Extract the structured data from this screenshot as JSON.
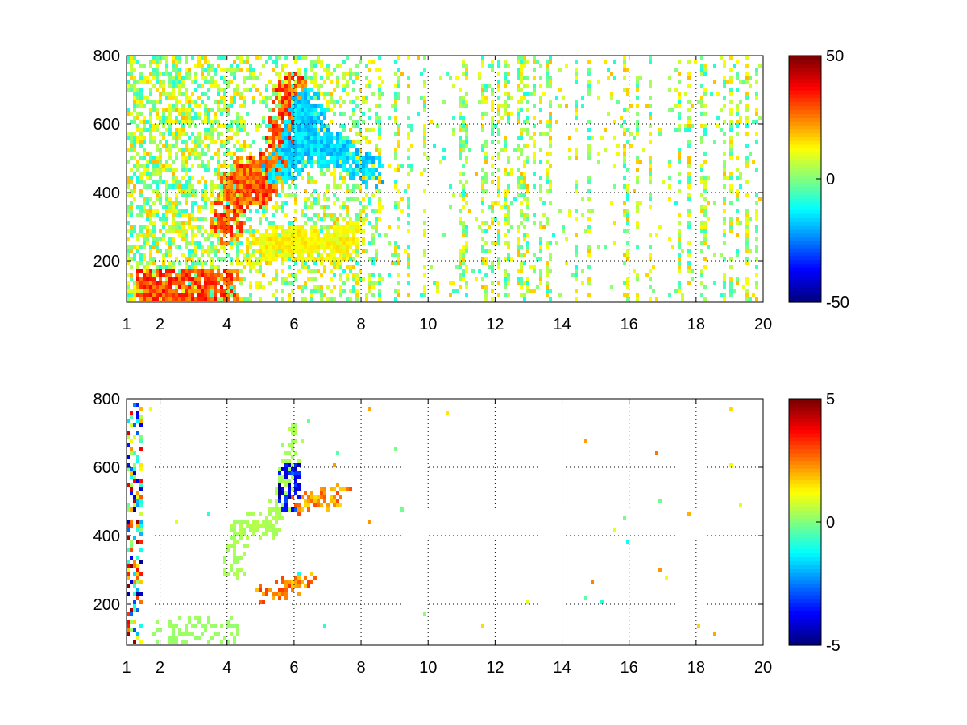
{
  "chart_data": [
    {
      "type": "heatmap",
      "title": "",
      "xlabel": "",
      "ylabel": "",
      "x_ticks": [
        1,
        2,
        4,
        6,
        8,
        10,
        12,
        14,
        16,
        18,
        20
      ],
      "y_ticks": [
        200,
        400,
        600,
        800
      ],
      "xlim": [
        1,
        20
      ],
      "ylim": [
        80,
        800
      ],
      "grid": true,
      "colormap": "jet",
      "colorbar": {
        "ticks": [
          -50,
          0,
          50
        ],
        "range": [
          -50,
          50
        ],
        "placement": "right"
      },
      "features": [
        {
          "name": "dense-low-band",
          "x": [
            1.3,
            4.4
          ],
          "y": [
            80,
            180
          ],
          "value": 35
        },
        {
          "name": "rising-ridge",
          "points": [
            [
              4.0,
              300
            ],
            [
              4.3,
              420
            ],
            [
              4.6,
              460
            ],
            [
              5.0,
              410
            ],
            [
              5.4,
              470
            ],
            [
              5.7,
              560
            ],
            [
              5.9,
              700
            ]
          ],
          "value": 35
        },
        {
          "name": "negative-ridge",
          "points": [
            [
              5.6,
              470
            ],
            [
              5.9,
              500
            ],
            [
              6.2,
              580
            ],
            [
              6.4,
              650
            ],
            [
              6.8,
              520
            ],
            [
              7.3,
              520
            ],
            [
              8.3,
              460
            ]
          ],
          "value": -20
        },
        {
          "name": "lower-band",
          "points": [
            [
              4.9,
              230
            ],
            [
              5.5,
              250
            ],
            [
              6.0,
              260
            ],
            [
              6.5,
              250
            ],
            [
              7.2,
              240
            ],
            [
              7.6,
              280
            ]
          ],
          "value": 15
        }
      ]
    },
    {
      "type": "heatmap",
      "title": "",
      "xlabel": "",
      "ylabel": "",
      "x_ticks": [
        1,
        2,
        4,
        6,
        8,
        10,
        12,
        14,
        16,
        18,
        20
      ],
      "y_ticks": [
        200,
        400,
        600,
        800
      ],
      "xlim": [
        1,
        20
      ],
      "ylim": [
        80,
        800
      ],
      "grid": true,
      "colormap": "jet",
      "colorbar": {
        "ticks": [
          -5,
          0,
          5
        ],
        "range": [
          -5,
          5
        ],
        "placement": "right"
      },
      "features": [
        {
          "name": "low-band",
          "x": [
            1.8,
            4.4
          ],
          "y": [
            85,
            160
          ],
          "value": 0.3
        },
        {
          "name": "rising-ridge",
          "points": [
            [
              4.2,
              300
            ],
            [
              4.4,
              420
            ],
            [
              4.8,
              440
            ],
            [
              5.2,
              420
            ],
            [
              5.5,
              470
            ],
            [
              5.8,
              560
            ],
            [
              6.0,
              700
            ]
          ],
          "value": 0.5
        },
        {
          "name": "negative-cluster",
          "x": [
            5.5,
            6.2
          ],
          "y": [
            470,
            610
          ],
          "value": -4.5
        },
        {
          "name": "positive-ridge",
          "points": [
            [
              6.2,
              490
            ],
            [
              6.6,
              500
            ],
            [
              7.0,
              510
            ],
            [
              7.4,
              520
            ]
          ],
          "value": 2.8
        },
        {
          "name": "lower-positive-band",
          "points": [
            [
              5.2,
              230
            ],
            [
              5.6,
              240
            ],
            [
              6.0,
              255
            ],
            [
              6.4,
              260
            ]
          ],
          "value": 3.0
        }
      ]
    }
  ]
}
